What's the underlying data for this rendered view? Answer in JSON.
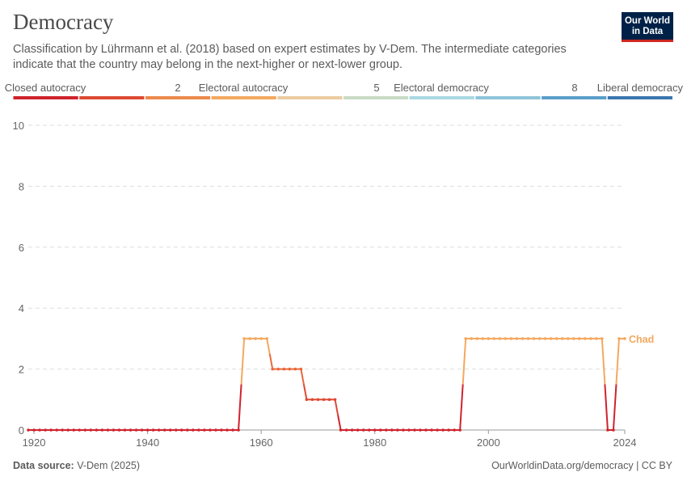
{
  "header": {
    "title": "Democracy",
    "subtitle": "Classification by Lührmann et al. (2018) based on expert estimates by V-Dem. The intermediate categories indicate that the country may belong in the next-higher or next-lower group.",
    "logo_line1": "Our World",
    "logo_line2": "in Data"
  },
  "footer": {
    "source_label": "Data source:",
    "source_value": "V-Dem (2025)",
    "link": "OurWorldinData.org/democracy | CC BY"
  },
  "legend": {
    "labels": [
      "Closed autocracy",
      "2",
      "Electoral autocracy",
      "5",
      "Electoral democracy",
      "8",
      "Liberal democracy"
    ],
    "colors": [
      "#d0232d",
      "#dd4a34",
      "#ec8a4c",
      "#f4a85f",
      "#eccba2",
      "#c8dbc4",
      "#a9d8e3",
      "#8ec4d8",
      "#5a9ec9",
      "#3a76b0"
    ]
  },
  "chart_data": {
    "type": "line",
    "x_ticks": [
      "1920",
      "1940",
      "1960",
      "1980",
      "2000",
      "2024"
    ],
    "y_ticks": [
      "0",
      "2",
      "4",
      "6",
      "8",
      "10"
    ],
    "xlim": [
      1919,
      2024
    ],
    "ylim": [
      0,
      10
    ],
    "grid": true,
    "series": [
      {
        "name": "Chad",
        "color": "#f4a85f",
        "runs": [
          {
            "start": 1919,
            "end": 1956,
            "value": 0
          },
          {
            "start": 1957,
            "end": 1961,
            "value": 3
          },
          {
            "start": 1962,
            "end": 1967,
            "value": 2
          },
          {
            "start": 1968,
            "end": 1973,
            "value": 1
          },
          {
            "start": 1974,
            "end": 1995,
            "value": 0
          },
          {
            "start": 1996,
            "end": 2020,
            "value": 3
          },
          {
            "start": 2021,
            "end": 2022,
            "value": 0
          },
          {
            "start": 2023,
            "end": 2024,
            "value": 3
          }
        ]
      }
    ]
  }
}
